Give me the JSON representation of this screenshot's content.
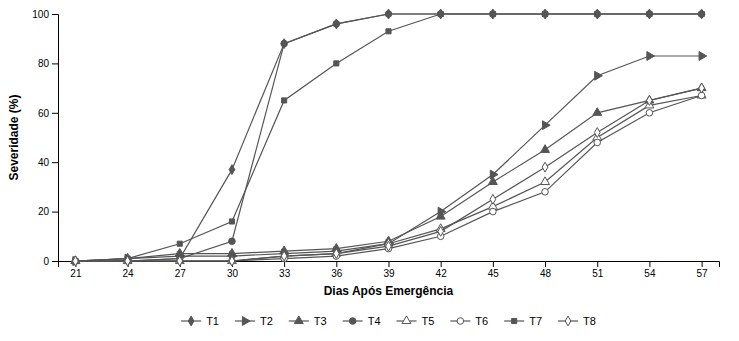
{
  "chart_data": {
    "type": "line",
    "xlabel": "Dias Após Emergência",
    "ylabel": "Severidade (%)",
    "x": [
      21,
      24,
      27,
      30,
      33,
      36,
      39,
      42,
      45,
      48,
      51,
      54,
      57
    ],
    "xlim": [
      20,
      58
    ],
    "xticks": [
      21,
      24,
      27,
      30,
      33,
      36,
      39,
      42,
      45,
      48,
      51,
      54,
      57
    ],
    "ylim": [
      0,
      100
    ],
    "yticks": [
      0,
      20,
      40,
      60,
      80,
      100
    ],
    "grid": false,
    "legend": "bottom",
    "series": [
      {
        "name": "T1",
        "color": "#555555",
        "marker": "diamond",
        "values": [
          0,
          0,
          1,
          37,
          88,
          96,
          100,
          100,
          100,
          100,
          100,
          100,
          100
        ]
      },
      {
        "name": "T2",
        "color": "#555555",
        "marker": "triangle-right",
        "values": [
          0,
          1,
          2,
          2,
          3,
          4,
          7,
          20,
          35,
          55,
          75,
          83,
          83
        ]
      },
      {
        "name": "T3",
        "color": "#555555",
        "marker": "triangle-up",
        "values": [
          0,
          1,
          3,
          3,
          4,
          5,
          8,
          18,
          32,
          45,
          60,
          65,
          70
        ]
      },
      {
        "name": "T4",
        "color": "#555555",
        "marker": "circle",
        "values": [
          0,
          0,
          1,
          8,
          88,
          96,
          100,
          100,
          100,
          100,
          100,
          100,
          100
        ]
      },
      {
        "name": "T5",
        "color": "#555555",
        "marker": "triangle-up-open",
        "values": [
          0,
          0,
          0,
          0,
          2,
          3,
          7,
          13,
          22,
          32,
          50,
          63,
          67
        ]
      },
      {
        "name": "T6",
        "color": "#555555",
        "marker": "circle-open",
        "values": [
          0,
          0,
          0,
          0,
          1,
          2,
          5,
          10,
          20,
          28,
          48,
          60,
          67
        ]
      },
      {
        "name": "T7",
        "color": "#555555",
        "marker": "square",
        "values": [
          0,
          1,
          7,
          16,
          65,
          80,
          93,
          100,
          100,
          100,
          100,
          100,
          100
        ]
      },
      {
        "name": "T8",
        "color": "#555555",
        "marker": "diamond-open",
        "values": [
          0,
          0,
          0,
          0,
          2,
          3,
          6,
          12,
          25,
          38,
          52,
          65,
          70
        ]
      }
    ]
  }
}
